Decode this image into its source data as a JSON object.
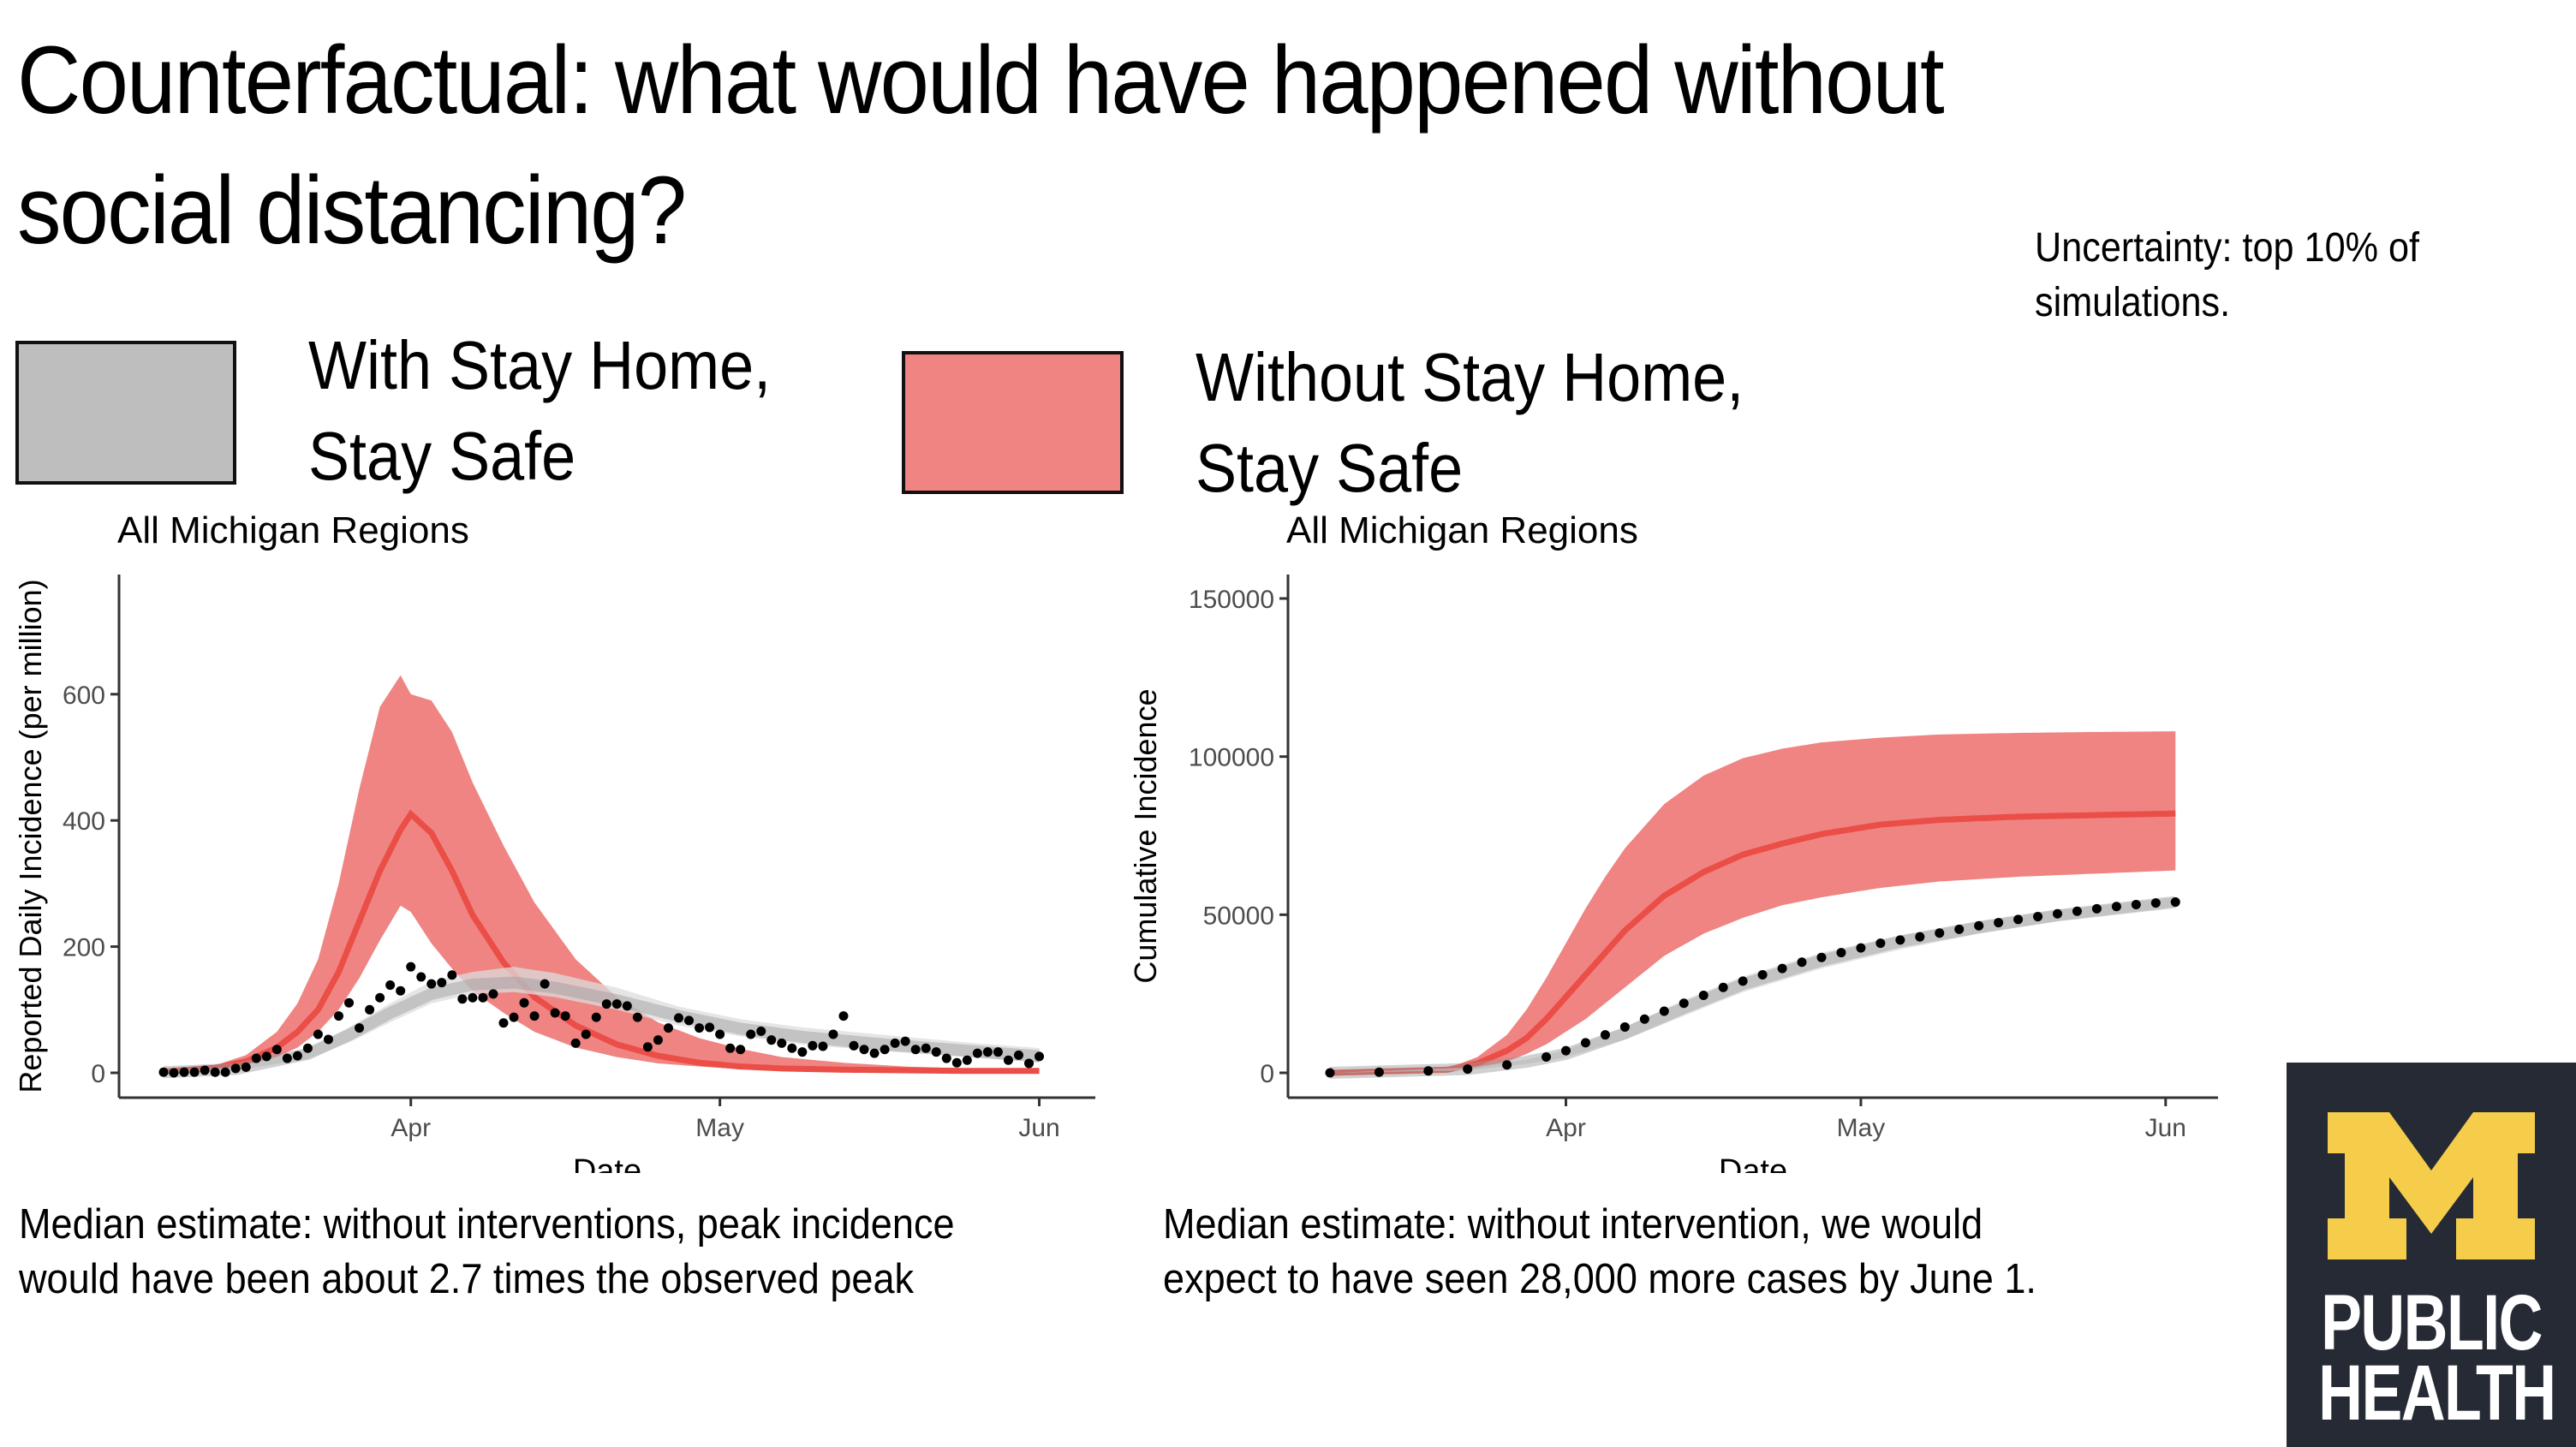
{
  "slide": {
    "title": "Counterfactual: what would have happened without social distancing?",
    "uncertainty_note": "Uncertainty: top 10% of simulations."
  },
  "legend": {
    "with": {
      "label": "With Stay Home, Stay Safe",
      "color": "#bebebe"
    },
    "without": {
      "label": "Without Stay Home, Stay Safe",
      "color": "#ef8482"
    }
  },
  "colors": {
    "red_band": "#ef8482",
    "red_line": "#eb4d47",
    "grey_band_outer": "#dcdcdc",
    "grey_band_inner": "#bdbdbd",
    "points": "#000000",
    "axis": "#333333",
    "tick_label": "#4d4d4d",
    "logo_bg": "#252a35",
    "logo_m": "#f5cd4b"
  },
  "captions": {
    "left": "Median estimate: without interventions, peak incidence would have been about 2.7 times the observed peak",
    "left_line1": "Median estimate: without interventions, peak incidence",
    "left_line2": "would have been about 2.7 times the observed peak",
    "right_line1": "Median estimate: without intervention, we would",
    "right_line2": "expect to have seen 28,000 more cases by June 1."
  },
  "logo": {
    "line1": "PUBLIC",
    "line2": "HEALTH"
  },
  "chart_data": [
    {
      "type": "line",
      "title": "All Michigan Regions",
      "xlabel": "Date",
      "ylabel": "Reported Daily Incidence (per million)",
      "x_ticks": [
        "Apr",
        "May",
        "Jun"
      ],
      "y_ticks": [
        0,
        200,
        400,
        600
      ],
      "ylim": [
        -20,
        790
      ],
      "x_start": "Mar 8",
      "x_end": "Jun 1",
      "grid": false,
      "series": [
        {
          "name": "Observed (points)",
          "kind": "scatter",
          "start_day": 0,
          "values": [
            1,
            0,
            1,
            1,
            4,
            1,
            1,
            7,
            9,
            23,
            26,
            37,
            23,
            27,
            39,
            61,
            53,
            90,
            111,
            71,
            100,
            119,
            139,
            130,
            168,
            152,
            141,
            143,
            155,
            117,
            119,
            119,
            125,
            79,
            88,
            111,
            90,
            141,
            95,
            90,
            47,
            61,
            88,
            109,
            109,
            106,
            88,
            41,
            52,
            71,
            87,
            83,
            71,
            72,
            61,
            39,
            37,
            61,
            66,
            52,
            47,
            39,
            33,
            43,
            42,
            61,
            90,
            43,
            37,
            31,
            37,
            47,
            50,
            37,
            39,
            33,
            23,
            16,
            20,
            31,
            33,
            33,
            20,
            28,
            15,
            26
          ]
        },
        {
          "name": "With Stay Home, Stay Safe (median)",
          "kind": "band",
          "days": [
            0,
            7,
            14,
            18,
            22,
            26,
            30,
            34,
            38,
            44,
            50,
            56,
            62,
            70,
            78,
            86
          ],
          "median": [
            1,
            6,
            30,
            60,
            95,
            125,
            140,
            143,
            135,
            115,
            90,
            70,
            57,
            45,
            35,
            25
          ],
          "lower": [
            0,
            4,
            22,
            48,
            80,
            110,
            125,
            128,
            120,
            100,
            75,
            58,
            45,
            34,
            25,
            15
          ],
          "upper": [
            2,
            9,
            38,
            72,
            110,
            145,
            160,
            168,
            158,
            135,
            105,
            85,
            72,
            60,
            48,
            38
          ]
        },
        {
          "name": "Without Stay Home, Stay Safe (median)",
          "kind": "band",
          "days": [
            0,
            5,
            8,
            11,
            13,
            15,
            17,
            19,
            21,
            23,
            24,
            26,
            28,
            30,
            33,
            36,
            40,
            44,
            48,
            52,
            56,
            60,
            66,
            72,
            78,
            86
          ],
          "median": [
            2,
            8,
            18,
            40,
            65,
            100,
            160,
            240,
            320,
            385,
            410,
            380,
            320,
            250,
            175,
            120,
            75,
            45,
            27,
            16,
            10,
            7,
            5,
            4,
            3,
            3
          ],
          "lower": [
            1,
            5,
            12,
            25,
            40,
            65,
            100,
            150,
            210,
            265,
            255,
            205,
            165,
            130,
            95,
            65,
            40,
            25,
            15,
            10,
            6,
            4,
            3,
            2,
            2,
            2
          ],
          "upper": [
            3,
            12,
            28,
            65,
            110,
            180,
            300,
            450,
            580,
            630,
            600,
            590,
            540,
            460,
            360,
            270,
            180,
            120,
            80,
            55,
            38,
            25,
            16,
            10,
            7,
            5
          ]
        }
      ]
    },
    {
      "type": "line",
      "title": "All Michigan Regions",
      "xlabel": "Date",
      "ylabel": "Cumulative Incidence",
      "x_ticks": [
        "Apr",
        "May",
        "Jun"
      ],
      "y_ticks": [
        0,
        50000,
        100000,
        150000
      ],
      "ylim": [
        -4000,
        157000
      ],
      "x_start": "Mar 8",
      "x_end": "Jun 2",
      "grid": false,
      "series": [
        {
          "name": "Observed cumulative (points)",
          "kind": "scatter",
          "days": [
            0,
            5,
            10,
            14,
            18,
            22,
            24,
            26,
            28,
            30,
            32,
            34,
            36,
            38,
            40,
            42,
            44,
            46,
            48,
            50,
            52,
            54,
            56,
            58,
            60,
            62,
            64,
            66,
            68,
            70,
            72,
            74,
            76,
            78,
            80,
            82,
            84,
            86
          ],
          "values": [
            0,
            200,
            600,
            1200,
            2500,
            5000,
            7000,
            9500,
            12000,
            14500,
            17000,
            19500,
            22000,
            24500,
            27000,
            29000,
            31000,
            33000,
            35000,
            36500,
            38000,
            39500,
            41000,
            42000,
            43000,
            44200,
            45400,
            46500,
            47500,
            48500,
            49400,
            50300,
            51100,
            51900,
            52600,
            53200,
            53700,
            54000
          ]
        },
        {
          "name": "With Stay Home, Stay Safe",
          "kind": "band",
          "days": [
            0,
            14,
            20,
            24,
            30,
            36,
            42,
            50,
            58,
            66,
            74,
            86
          ],
          "median": [
            0,
            1200,
            3500,
            6000,
            12500,
            20500,
            28000,
            35500,
            41500,
            46000,
            49800,
            54000
          ],
          "lower": [
            0,
            800,
            2800,
            5000,
            10500,
            18000,
            25500,
            33000,
            39000,
            44000,
            48000,
            52500
          ],
          "upper": [
            0,
            1600,
            4200,
            7200,
            14500,
            23000,
            30500,
            38000,
            43500,
            48000,
            51500,
            55500
          ]
        },
        {
          "name": "Without Stay Home, Stay Safe",
          "kind": "band",
          "days": [
            0,
            12,
            15,
            18,
            20,
            22,
            24,
            26,
            28,
            30,
            34,
            38,
            42,
            46,
            50,
            56,
            62,
            70,
            78,
            86
          ],
          "median": [
            0,
            1000,
            3000,
            7000,
            11000,
            17000,
            24000,
            31000,
            38000,
            45000,
            56000,
            63500,
            69000,
            72500,
            75500,
            78500,
            80000,
            81000,
            81500,
            82000
          ],
          "lower": [
            0,
            600,
            1500,
            3500,
            6000,
            9000,
            13000,
            17000,
            22000,
            27000,
            37000,
            44000,
            49000,
            53000,
            55500,
            58500,
            60500,
            62000,
            63000,
            64000
          ],
          "upper": [
            0,
            1500,
            5000,
            12000,
            20000,
            30000,
            41000,
            52000,
            62000,
            71000,
            85000,
            94000,
            99500,
            102500,
            104500,
            106000,
            107000,
            107500,
            107800,
            108000
          ]
        }
      ]
    }
  ]
}
